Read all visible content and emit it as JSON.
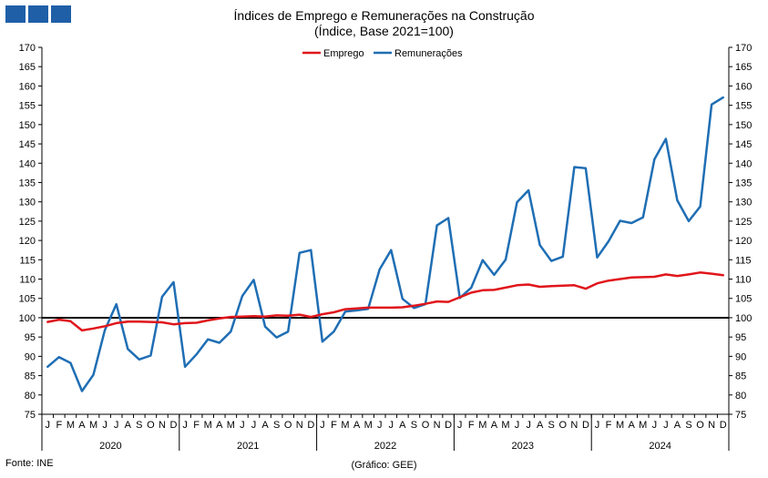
{
  "chart_data": {
    "type": "line",
    "title": "Índices de Emprego e Remunerações na Construção",
    "subtitle": "(Índice, Base 2021=100)",
    "ylim": [
      75,
      170
    ],
    "yticks": [
      75,
      80,
      85,
      90,
      95,
      100,
      105,
      110,
      115,
      120,
      125,
      130,
      135,
      140,
      145,
      150,
      155,
      160,
      165,
      170
    ],
    "month_labels": [
      "J",
      "F",
      "M",
      "A",
      "M",
      "J",
      "J",
      "A",
      "S",
      "O",
      "N",
      "D"
    ],
    "years": [
      "2020",
      "2021",
      "2022",
      "2023",
      "2024"
    ],
    "reference_line": 100,
    "legend_position": "top-center",
    "source": "Fonte: INE",
    "credit": "(Gráfico: GEE)",
    "series": [
      {
        "name": "Emprego",
        "color": "#e0161b",
        "values": [
          98.9,
          99.5,
          99.1,
          96.7,
          97.2,
          97.8,
          98.6,
          99.0,
          99.0,
          98.9,
          98.8,
          98.3,
          98.6,
          98.7,
          99.3,
          99.8,
          100.2,
          100.3,
          100.4,
          100.3,
          100.6,
          100.5,
          100.8,
          100.2,
          100.9,
          101.4,
          102.2,
          102.4,
          102.6,
          102.6,
          102.6,
          102.7,
          103.1,
          103.6,
          104.2,
          104.1,
          105.3,
          106.5,
          107.1,
          107.2,
          107.8,
          108.4,
          108.6,
          108.0,
          108.2,
          108.3,
          108.4,
          107.5,
          108.9,
          109.6,
          110.0,
          110.4,
          110.5,
          110.6,
          111.2,
          110.8,
          111.2,
          111.7,
          111.4,
          111.0
        ]
      },
      {
        "name": "Remunerações",
        "color": "#1f6eb4",
        "values": [
          87.3,
          89.8,
          88.3,
          81.0,
          85.2,
          96.8,
          103.5,
          91.9,
          89.2,
          90.2,
          105.4,
          109.2,
          87.3,
          90.5,
          94.4,
          93.5,
          96.4,
          105.6,
          109.8,
          97.7,
          94.9,
          96.4,
          116.8,
          117.5,
          93.8,
          96.4,
          101.6,
          101.9,
          102.3,
          112.5,
          117.5,
          104.9,
          102.5,
          103.5,
          123.9,
          125.8,
          105.1,
          107.8,
          114.9,
          111.1,
          115.0,
          129.9,
          133.0,
          118.8,
          114.7,
          115.8,
          139.0,
          138.7,
          115.6,
          119.8,
          125.1,
          124.5,
          126.0,
          141.0,
          146.3,
          130.4,
          125.0,
          128.8,
          155.2,
          157.0
        ]
      }
    ]
  }
}
